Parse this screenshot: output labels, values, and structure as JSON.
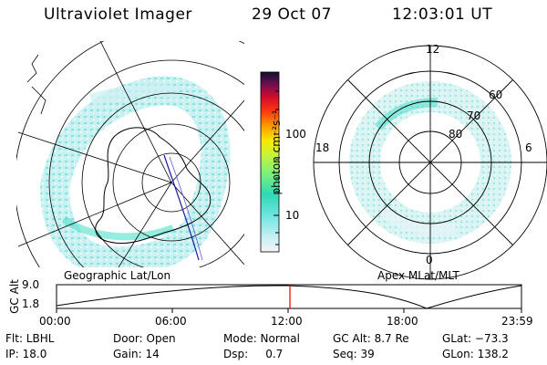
{
  "header": {
    "instrument": "Ultraviolet Imager",
    "date": "29 Oct 07",
    "time": "12:03:01 UT"
  },
  "colorbar": {
    "label": "photon cm⁻²s⁻¹",
    "ticks": [
      "100",
      "10"
    ]
  },
  "panels": {
    "left_caption": "Geographic Lat/Lon",
    "right_caption": "Apex MLat/MLT",
    "mlt_labels": {
      "top": "12",
      "left": "18",
      "right": "6",
      "bottom": "0"
    },
    "mlat_labels": [
      "60",
      "70",
      "80"
    ]
  },
  "orbit": {
    "ylabel": "GC Alt",
    "y_ticks": [
      "9.0",
      "1.8"
    ],
    "x_ticks": [
      "00:00",
      "06:00",
      "12:00",
      "18:00",
      "23:59"
    ],
    "current_time_fraction": 0.502
  },
  "footer": {
    "flt": "Flt: LBHL",
    "ip": "IP: 18.0",
    "door": "Door: Open",
    "gain": "Gain: 14",
    "mode": "Mode: Normal",
    "dsp": "Dsp:     0.7",
    "gcalt": "GC Alt: 8.7 Re",
    "seq": "Seq: 39",
    "glat": "GLat: −73.3",
    "glon": "GLon: 138.2"
  }
}
